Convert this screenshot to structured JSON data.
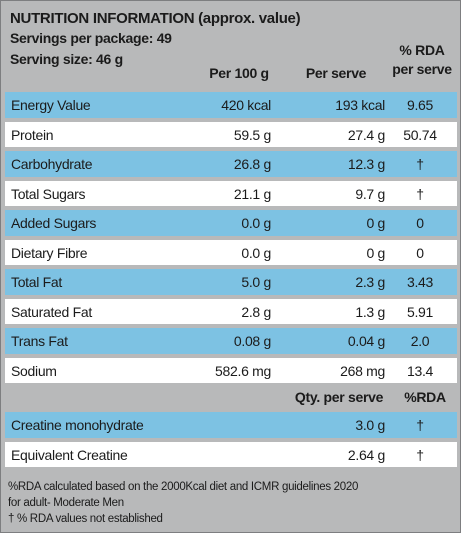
{
  "header": {
    "title": "NUTRITION INFORMATION (approx. value)",
    "servings": "Servings per package: 49",
    "serving_size": "Serving size: 46 g",
    "col_per100": "Per 100 g",
    "col_perserve": "Per serve",
    "col_rda_line1": "% RDA",
    "col_rda_line2": "per serve"
  },
  "rows": [
    {
      "name": "Energy Value",
      "per100": "420 kcal",
      "perserve": "193 kcal",
      "rda": "9.65"
    },
    {
      "name": "Protein",
      "per100": "59.5 g",
      "perserve": "27.4 g",
      "rda": "50.74"
    },
    {
      "name": "Carbohydrate",
      "per100": "26.8 g",
      "perserve": "12.3 g",
      "rda": "†"
    },
    {
      "name": "Total Sugars",
      "per100": "21.1 g",
      "perserve": "9.7 g",
      "rda": "†"
    },
    {
      "name": "Added Sugars",
      "per100": "0.0 g",
      "perserve": "0 g",
      "rda": "0"
    },
    {
      "name": "Dietary Fibre",
      "per100": "0.0 g",
      "perserve": "0 g",
      "rda": "0"
    },
    {
      "name": "Total Fat",
      "per100": "5.0 g",
      "perserve": "2.3 g",
      "rda": "3.43"
    },
    {
      "name": "Saturated Fat",
      "per100": "2.8 g",
      "perserve": "1.3 g",
      "rda": "5.91"
    },
    {
      "name": "Trans Fat",
      "per100": "0.08 g",
      "perserve": "0.04 g",
      "rda": "2.0"
    },
    {
      "name": "Sodium",
      "per100": "582.6 mg",
      "perserve": "268 mg",
      "rda": "13.4"
    }
  ],
  "section2": {
    "col_qty": "Qty. per serve",
    "col_rda": "%RDA",
    "rows": [
      {
        "name": "Creatine monohydrate",
        "qty": "3.0 g",
        "rda": "†"
      },
      {
        "name": "Equivalent Creatine",
        "qty": "2.64 g",
        "rda": "†"
      }
    ]
  },
  "footnote": {
    "line1": "%RDA calculated based on the 2000Kcal diet and ICMR guidelines 2020",
    "line2": "for adult- Moderate Men",
    "line3": "† % RDA values not established"
  },
  "colors": {
    "panel": "#b8b9ba",
    "highlight_row": "#7dc2e3",
    "plain_row": "#ffffff"
  }
}
